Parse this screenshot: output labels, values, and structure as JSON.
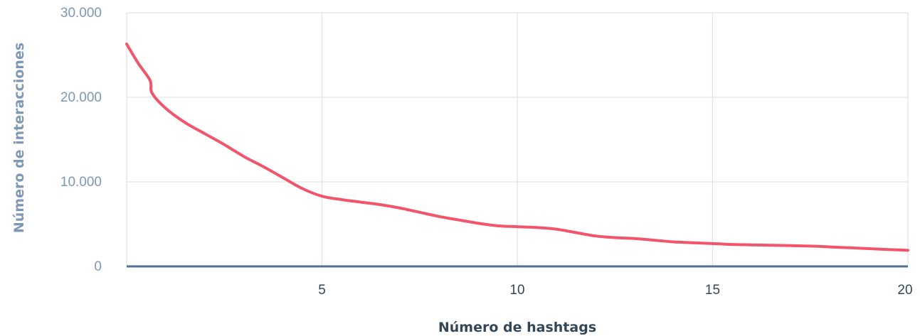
{
  "chart_data": {
    "type": "line",
    "title": "",
    "xlabel": "Número de hashtags",
    "ylabel": "Número de interacciones",
    "xlim": [
      0,
      20
    ],
    "ylim": [
      0,
      30000
    ],
    "x_ticks": [
      5,
      10,
      15,
      20
    ],
    "x_tick_labels": [
      "5",
      "10",
      "15",
      "20"
    ],
    "y_ticks": [
      0,
      10000,
      20000,
      30000
    ],
    "y_tick_labels": [
      "0",
      "10.000",
      "20.000",
      "30.000"
    ],
    "grid": true,
    "legend": "none",
    "colors": {
      "line": "#f2546b",
      "grid": "#dfe3eb",
      "baseline": "#516f90",
      "tick_text": "#7c98b6",
      "x_tick_text": "#33475b"
    },
    "series": [
      {
        "x": [
          0,
          0.3,
          0.6,
          0.65,
          1,
          1.5,
          2,
          2.5,
          3,
          3.5,
          4,
          4.5,
          5,
          5.5,
          6,
          6.5,
          7,
          7.5,
          8,
          8.5,
          9,
          9.5,
          10,
          10.5,
          11,
          11.5,
          12,
          12.5,
          13,
          13.5,
          14,
          14.5,
          15,
          15.5,
          16,
          16.5,
          17,
          17.5,
          18,
          18.5,
          19,
          19.5,
          20
        ],
        "values": [
          26300,
          24000,
          22000,
          20500,
          18700,
          17000,
          15700,
          14400,
          13000,
          11800,
          10500,
          9200,
          8300,
          7900,
          7600,
          7300,
          6900,
          6400,
          5900,
          5500,
          5100,
          4800,
          4700,
          4600,
          4400,
          4000,
          3600,
          3400,
          3300,
          3100,
          2900,
          2800,
          2700,
          2600,
          2550,
          2500,
          2450,
          2400,
          2300,
          2200,
          2100,
          2000,
          1900
        ]
      }
    ]
  }
}
